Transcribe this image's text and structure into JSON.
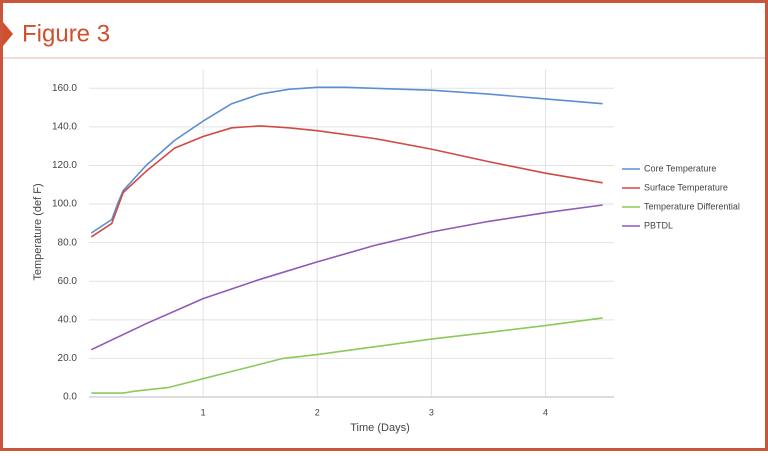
{
  "chart_data": {
    "type": "line",
    "title": "Figure 3",
    "x_label": "Time (Days)",
    "y_label": "Temperature (def F)",
    "xlim": [
      0,
      4.6
    ],
    "xticks": [
      1,
      2,
      3,
      4
    ],
    "ylim": [
      0,
      170
    ],
    "yticks": [
      {
        "value": 0,
        "label": "0.0"
      },
      {
        "value": 20,
        "label": "20.0"
      },
      {
        "value": 40,
        "label": "40.0"
      },
      {
        "value": 60,
        "label": "60.0"
      },
      {
        "value": 80,
        "label": "80.0"
      },
      {
        "value": 100,
        "label": "100.0"
      },
      {
        "value": 120,
        "label": "120.0"
      },
      {
        "value": 140,
        "label": "140.0"
      },
      {
        "value": 160,
        "label": "160.0"
      }
    ],
    "grid": true,
    "legend": "right",
    "series": [
      {
        "name": "Core Temperature",
        "color": "#5b8fd0",
        "x": [
          0.02,
          0.2,
          0.25,
          0.3,
          0.5,
          0.75,
          1,
          1.25,
          1.5,
          1.75,
          2,
          2.25,
          2.5,
          3,
          3.5,
          4,
          4.5
        ],
        "values": [
          85,
          92,
          100,
          107,
          120,
          133,
          143,
          152,
          157,
          159.5,
          160.5,
          160.5,
          160,
          159,
          157,
          154.5,
          152
        ]
      },
      {
        "name": "Surface Temperature",
        "color": "#d04a45",
        "x": [
          0.02,
          0.2,
          0.25,
          0.3,
          0.5,
          0.75,
          1,
          1.25,
          1.5,
          1.75,
          2,
          2.5,
          3,
          3.5,
          4,
          4.5
        ],
        "values": [
          83,
          90,
          98,
          106,
          117,
          129,
          135,
          139.5,
          140.5,
          139.5,
          138,
          134,
          128.5,
          122,
          116,
          111
        ]
      },
      {
        "name": "Temperature Differential",
        "color": "#8dc95a",
        "x": [
          0.02,
          0.3,
          0.4,
          0.7,
          1,
          1.3,
          1.7,
          2,
          2.5,
          3,
          3.5,
          4,
          4.5
        ],
        "values": [
          2,
          2,
          3,
          5,
          9.5,
          14,
          20,
          22,
          26,
          30,
          33.5,
          37,
          41
        ]
      },
      {
        "name": "PBTDL",
        "color": "#8e5ab8",
        "x": [
          0.02,
          0.5,
          1,
          1.5,
          2,
          2.5,
          3,
          3.5,
          4,
          4.5
        ],
        "values": [
          24.5,
          38,
          51,
          61,
          70,
          78.5,
          85.5,
          91,
          95.5,
          99.5
        ]
      }
    ]
  }
}
